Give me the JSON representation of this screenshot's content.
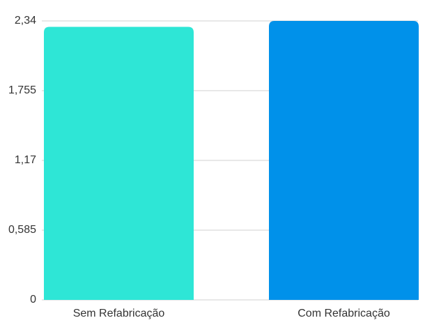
{
  "chart_data": {
    "type": "bar",
    "categories": [
      "Sem Refabricação",
      "Com Refabricação"
    ],
    "values": [
      2.29,
      2.34
    ],
    "colors": [
      "#2ee6d6",
      "#0091ea"
    ],
    "ylim": [
      0,
      2.34
    ],
    "yticks": [
      0,
      {
        "value": 0.585,
        "label": "0,585"
      },
      {
        "value": 1.17,
        "label": "1,17"
      },
      {
        "value": 1.755,
        "label": "1,755"
      },
      {
        "value": 2.34,
        "label": "2,34"
      }
    ],
    "grid": true
  }
}
